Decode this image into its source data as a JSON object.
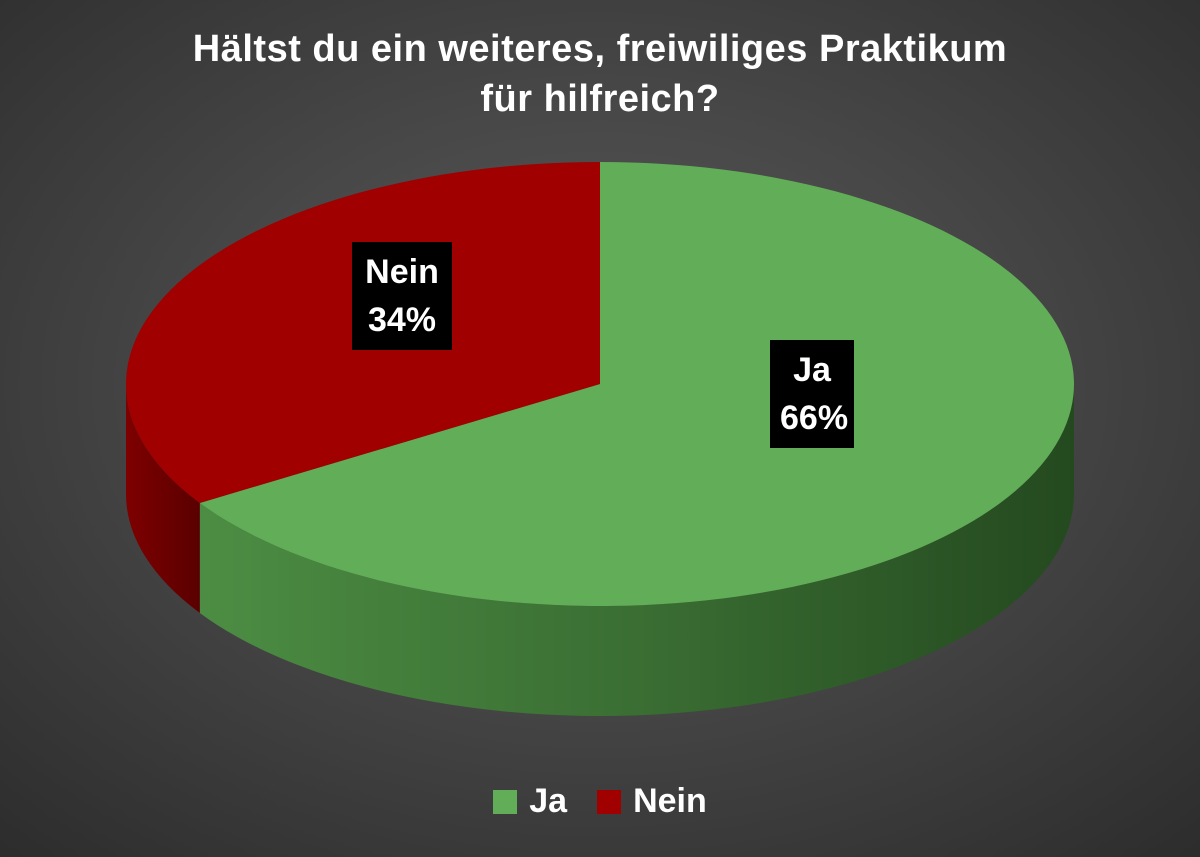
{
  "chart_data": {
    "type": "pie",
    "title_lines": [
      "Hältst du ein weiteres, freiwiliges Praktikum",
      "für hilfreich?"
    ],
    "slices": [
      {
        "name": "Ja",
        "value": 66,
        "label": "66%",
        "color": "#62ad57",
        "side_color": "#3f7a38"
      },
      {
        "name": "Nein",
        "value": 34,
        "label": "34%",
        "color": "#a00000",
        "side_color": "#6e0000"
      }
    ],
    "legend": {
      "position": "bottom",
      "entries": [
        "Ja",
        "Nein"
      ]
    }
  }
}
